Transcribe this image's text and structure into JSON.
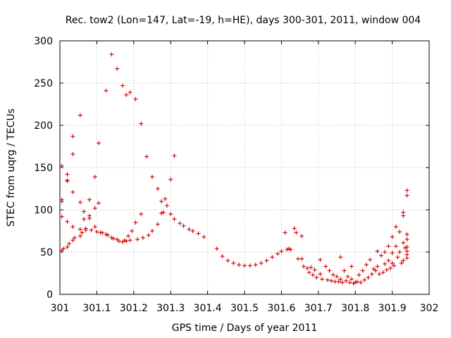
{
  "chart_data": {
    "type": "scatter",
    "title": "Rec. tow2 (Lon=147, Lat=-19, h=HE), days 300-301, 2011, window 004",
    "xlabel": "GPS time / Days of year 2011",
    "ylabel": "STEC from uqrg / TECUs",
    "xlim": [
      301,
      302
    ],
    "ylim": [
      0,
      300
    ],
    "x_ticks": [
      301,
      301.1,
      301.2,
      301.3,
      301.4,
      301.5,
      301.6,
      301.7,
      301.8,
      301.9,
      302
    ],
    "x_tick_labels": [
      "301",
      "301.1",
      "301.2",
      "301.3",
      "301.4",
      "301.5",
      "301.6",
      "301.7",
      "301.8",
      "301.9",
      "302"
    ],
    "y_ticks": [
      0,
      50,
      100,
      150,
      200,
      250,
      300
    ],
    "y_tick_labels": [
      "0",
      "50",
      "100",
      "150",
      "200",
      "250",
      "300"
    ],
    "grid": true,
    "marker": "+",
    "color": "#d00000",
    "points": [
      [
        301.005,
        152
      ],
      [
        301.005,
        110
      ],
      [
        301.005,
        112
      ],
      [
        301.005,
        92
      ],
      [
        301.005,
        52
      ],
      [
        301.01,
        54
      ],
      [
        301.02,
        142
      ],
      [
        301.02,
        135
      ],
      [
        301.02,
        134
      ],
      [
        301.02,
        86
      ],
      [
        301.02,
        56
      ],
      [
        301.025,
        60
      ],
      [
        301.035,
        187
      ],
      [
        301.035,
        166
      ],
      [
        301.035,
        121
      ],
      [
        301.035,
        80
      ],
      [
        301.035,
        64
      ],
      [
        301.04,
        67
      ],
      [
        301.055,
        212
      ],
      [
        301.055,
        109
      ],
      [
        301.055,
        77
      ],
      [
        301.055,
        69
      ],
      [
        301.06,
        73
      ],
      [
        301.065,
        98
      ],
      [
        301.065,
        89
      ],
      [
        301.07,
        76
      ],
      [
        301.07,
        78
      ],
      [
        301.08,
        112
      ],
      [
        301.08,
        93
      ],
      [
        301.08,
        90
      ],
      [
        301.085,
        76
      ],
      [
        301.095,
        139
      ],
      [
        301.095,
        102
      ],
      [
        301.095,
        80
      ],
      [
        301.1,
        74
      ],
      [
        301.105,
        179
      ],
      [
        301.105,
        108
      ],
      [
        301.11,
        73
      ],
      [
        301.115,
        73
      ],
      [
        301.125,
        241
      ],
      [
        301.125,
        71
      ],
      [
        301.13,
        70
      ],
      [
        301.14,
        284
      ],
      [
        301.14,
        67
      ],
      [
        301.145,
        66
      ],
      [
        301.155,
        267
      ],
      [
        301.155,
        65
      ],
      [
        301.16,
        63
      ],
      [
        301.17,
        247
      ],
      [
        301.17,
        62
      ],
      [
        301.175,
        64
      ],
      [
        301.18,
        236
      ],
      [
        301.18,
        63
      ],
      [
        301.185,
        69
      ],
      [
        301.19,
        239
      ],
      [
        301.19,
        64
      ],
      [
        301.195,
        75
      ],
      [
        301.205,
        231
      ],
      [
        301.205,
        85
      ],
      [
        301.21,
        65
      ],
      [
        301.22,
        202
      ],
      [
        301.22,
        95
      ],
      [
        301.225,
        67
      ],
      [
        301.235,
        163
      ],
      [
        301.24,
        70
      ],
      [
        301.25,
        139
      ],
      [
        301.25,
        75
      ],
      [
        301.265,
        125
      ],
      [
        301.265,
        83
      ],
      [
        301.275,
        110
      ],
      [
        301.275,
        96
      ],
      [
        301.28,
        97
      ],
      [
        301.285,
        113
      ],
      [
        301.29,
        105
      ],
      [
        301.3,
        136
      ],
      [
        301.3,
        95
      ],
      [
        301.31,
        164
      ],
      [
        301.31,
        89
      ],
      [
        301.325,
        84
      ],
      [
        301.335,
        81
      ],
      [
        301.35,
        77
      ],
      [
        301.36,
        75
      ],
      [
        301.375,
        72
      ],
      [
        301.39,
        68
      ],
      [
        301.425,
        54
      ],
      [
        301.44,
        45
      ],
      [
        301.455,
        40
      ],
      [
        301.47,
        37
      ],
      [
        301.485,
        35
      ],
      [
        301.5,
        34
      ],
      [
        301.515,
        34
      ],
      [
        301.53,
        35
      ],
      [
        301.545,
        37
      ],
      [
        301.56,
        40
      ],
      [
        301.575,
        44
      ],
      [
        301.59,
        48
      ],
      [
        301.6,
        51
      ],
      [
        301.61,
        73
      ],
      [
        301.615,
        53
      ],
      [
        301.62,
        54
      ],
      [
        301.625,
        53
      ],
      [
        301.635,
        78
      ],
      [
        301.64,
        73
      ],
      [
        301.645,
        42
      ],
      [
        301.655,
        69
      ],
      [
        301.655,
        42
      ],
      [
        301.66,
        33
      ],
      [
        301.67,
        31
      ],
      [
        301.675,
        26
      ],
      [
        301.68,
        32
      ],
      [
        301.685,
        23
      ],
      [
        301.69,
        29
      ],
      [
        301.695,
        20
      ],
      [
        301.705,
        41
      ],
      [
        301.705,
        24
      ],
      [
        301.71,
        18
      ],
      [
        301.72,
        33
      ],
      [
        301.725,
        17
      ],
      [
        301.73,
        28
      ],
      [
        301.735,
        16
      ],
      [
        301.74,
        23
      ],
      [
        301.745,
        15
      ],
      [
        301.75,
        21
      ],
      [
        301.755,
        15
      ],
      [
        301.76,
        44
      ],
      [
        301.76,
        18
      ],
      [
        301.765,
        14
      ],
      [
        301.77,
        28
      ],
      [
        301.775,
        16
      ],
      [
        301.78,
        21
      ],
      [
        301.785,
        14
      ],
      [
        301.79,
        33
      ],
      [
        301.79,
        18
      ],
      [
        301.795,
        13
      ],
      [
        301.8,
        14
      ],
      [
        301.805,
        15
      ],
      [
        301.81,
        23
      ],
      [
        301.815,
        14
      ],
      [
        301.82,
        28
      ],
      [
        301.825,
        17
      ],
      [
        301.83,
        35
      ],
      [
        301.835,
        20
      ],
      [
        301.84,
        41
      ],
      [
        301.845,
        24
      ],
      [
        301.85,
        30
      ],
      [
        301.855,
        28
      ],
      [
        301.86,
        51
      ],
      [
        301.86,
        33
      ],
      [
        301.865,
        24
      ],
      [
        301.87,
        46
      ],
      [
        301.875,
        26
      ],
      [
        301.88,
        50
      ],
      [
        301.88,
        36
      ],
      [
        301.885,
        29
      ],
      [
        301.89,
        57
      ],
      [
        301.89,
        40
      ],
      [
        301.895,
        31
      ],
      [
        301.9,
        68
      ],
      [
        301.9,
        49
      ],
      [
        301.9,
        37
      ],
      [
        301.905,
        34
      ],
      [
        301.91,
        80
      ],
      [
        301.91,
        57
      ],
      [
        301.915,
        44
      ],
      [
        301.92,
        74
      ],
      [
        301.92,
        50
      ],
      [
        301.925,
        37
      ],
      [
        301.93,
        97
      ],
      [
        301.93,
        93
      ],
      [
        301.93,
        61
      ],
      [
        301.93,
        40
      ],
      [
        301.935,
        55
      ],
      [
        301.94,
        123
      ],
      [
        301.94,
        117
      ],
      [
        301.94,
        71
      ],
      [
        301.94,
        65
      ],
      [
        301.94,
        56
      ],
      [
        301.94,
        51
      ],
      [
        301.94,
        47
      ],
      [
        301.94,
        43
      ]
    ]
  }
}
